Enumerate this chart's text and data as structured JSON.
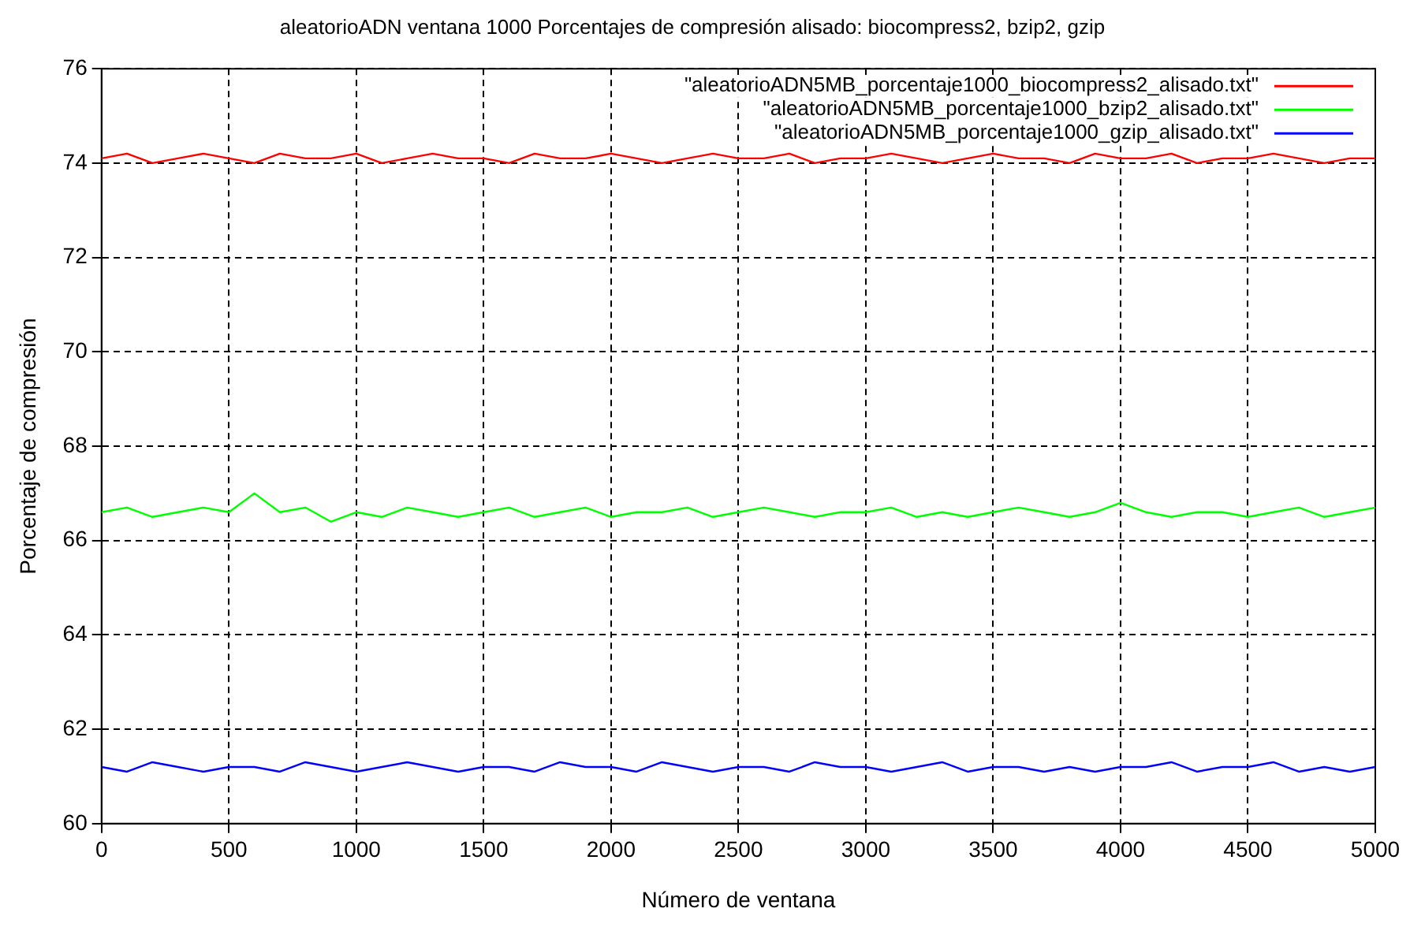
{
  "chart_data": {
    "type": "line",
    "title": "aleatorioADN ventana 1000 Porcentajes de compresión alisado: biocompress2, bzip2, gzip",
    "xlabel": "Número de ventana",
    "ylabel": "Porcentaje de compresión",
    "x": [
      0,
      100,
      200,
      300,
      400,
      500,
      600,
      700,
      800,
      900,
      1000,
      1100,
      1200,
      1300,
      1400,
      1500,
      1600,
      1700,
      1800,
      1900,
      2000,
      2100,
      2200,
      2300,
      2400,
      2500,
      2600,
      2700,
      2800,
      2900,
      3000,
      3100,
      3200,
      3300,
      3400,
      3500,
      3600,
      3700,
      3800,
      3900,
      4000,
      4100,
      4200,
      4300,
      4400,
      4500,
      4600,
      4700,
      4800,
      4900,
      5000
    ],
    "xlim": [
      0,
      5000
    ],
    "xticks": [
      0,
      500,
      1000,
      1500,
      2000,
      2500,
      3000,
      3500,
      4000,
      4500,
      5000
    ],
    "ylim": [
      60,
      76
    ],
    "yticks": [
      60,
      62,
      64,
      66,
      68,
      70,
      72,
      74,
      76
    ],
    "series": [
      {
        "name": "\"aleatorioADN5MB_porcentaje1000_biocompress2_alisado.txt\"",
        "color": "#ff0000",
        "values": [
          74.1,
          74.2,
          74.0,
          74.1,
          74.2,
          74.1,
          74.0,
          74.2,
          74.1,
          74.1,
          74.2,
          74.0,
          74.1,
          74.2,
          74.1,
          74.1,
          74.0,
          74.2,
          74.1,
          74.1,
          74.2,
          74.1,
          74.0,
          74.1,
          74.2,
          74.1,
          74.1,
          74.2,
          74.0,
          74.1,
          74.1,
          74.2,
          74.1,
          74.0,
          74.1,
          74.2,
          74.1,
          74.1,
          74.0,
          74.2,
          74.1,
          74.1,
          74.2,
          74.0,
          74.1,
          74.1,
          74.2,
          74.1,
          74.0,
          74.1,
          74.1
        ]
      },
      {
        "name": "\"aleatorioADN5MB_porcentaje1000_bzip2_alisado.txt\"",
        "color": "#00ff00",
        "values": [
          66.6,
          66.7,
          66.5,
          66.6,
          66.7,
          66.6,
          67.0,
          66.6,
          66.7,
          66.4,
          66.6,
          66.5,
          66.7,
          66.6,
          66.5,
          66.6,
          66.7,
          66.5,
          66.6,
          66.7,
          66.5,
          66.6,
          66.6,
          66.7,
          66.5,
          66.6,
          66.7,
          66.6,
          66.5,
          66.6,
          66.6,
          66.7,
          66.5,
          66.6,
          66.5,
          66.6,
          66.7,
          66.6,
          66.5,
          66.6,
          66.8,
          66.6,
          66.5,
          66.6,
          66.6,
          66.5,
          66.6,
          66.7,
          66.5,
          66.6,
          66.7
        ]
      },
      {
        "name": "\"aleatorioADN5MB_porcentaje1000_gzip_alisado.txt\"",
        "color": "#0000ff",
        "values": [
          61.2,
          61.1,
          61.3,
          61.2,
          61.1,
          61.2,
          61.2,
          61.1,
          61.3,
          61.2,
          61.1,
          61.2,
          61.3,
          61.2,
          61.1,
          61.2,
          61.2,
          61.1,
          61.3,
          61.2,
          61.2,
          61.1,
          61.3,
          61.2,
          61.1,
          61.2,
          61.2,
          61.1,
          61.3,
          61.2,
          61.2,
          61.1,
          61.2,
          61.3,
          61.1,
          61.2,
          61.2,
          61.1,
          61.2,
          61.1,
          61.2,
          61.2,
          61.3,
          61.1,
          61.2,
          61.2,
          61.3,
          61.1,
          61.2,
          61.1,
          61.2
        ]
      }
    ],
    "grid": true,
    "legend": "top right",
    "line_style": "solid",
    "marker": "none"
  }
}
